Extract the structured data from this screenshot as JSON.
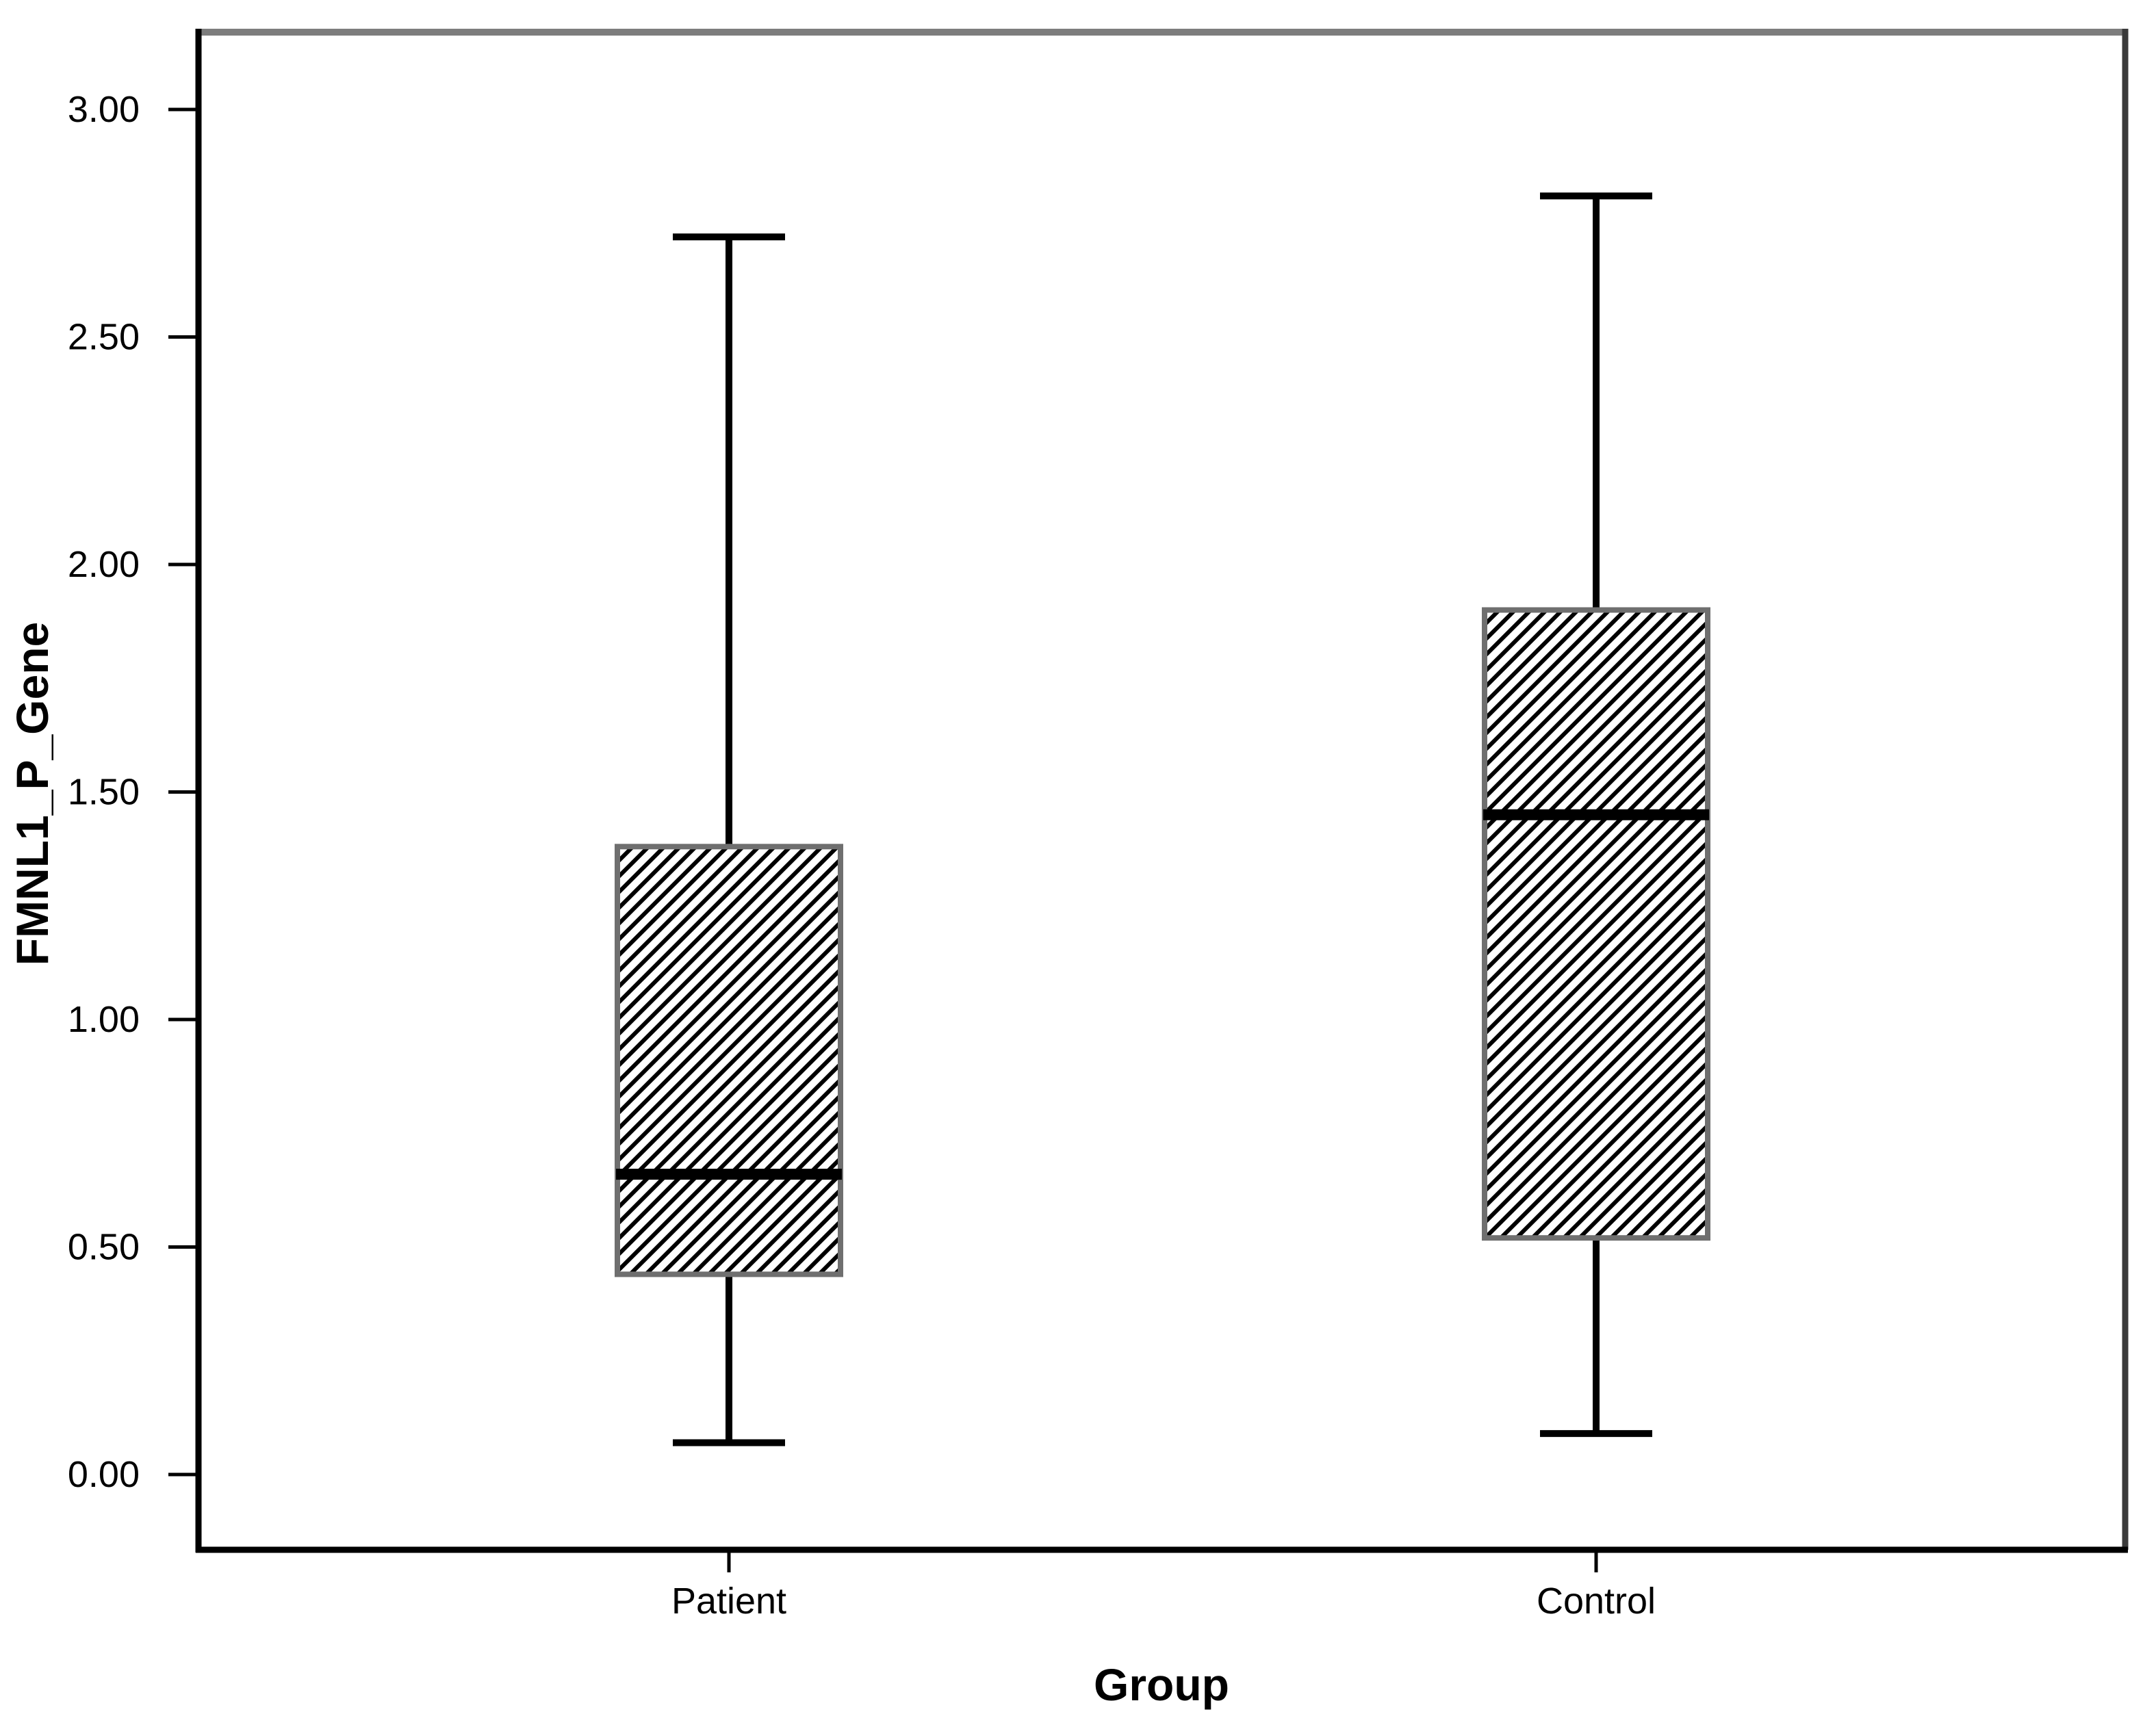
{
  "chart_data": {
    "type": "boxplot",
    "title": "",
    "xlabel": "Group",
    "ylabel": "FMNL1_P_Gene",
    "categories": [
      "Patient",
      "Control"
    ],
    "y_axis": {
      "ticks": [
        {
          "value": 0.0,
          "label": "0.00"
        },
        {
          "value": 0.5,
          "label": "0.50"
        },
        {
          "value": 1.0,
          "label": "1.00"
        },
        {
          "value": 1.5,
          "label": "1.50"
        },
        {
          "value": 2.0,
          "label": "2.00"
        },
        {
          "value": 2.5,
          "label": "2.50"
        },
        {
          "value": 3.0,
          "label": "3.00"
        }
      ],
      "ylim": [
        -0.17,
        3.17
      ],
      "grid": false
    },
    "legend": "none",
    "series": [
      {
        "name": "Patient",
        "min": 0.07,
        "q1": 0.44,
        "median": 0.66,
        "q3": 1.38,
        "max": 2.72
      },
      {
        "name": "Control",
        "min": 0.09,
        "q1": 0.52,
        "median": 1.45,
        "q3": 1.9,
        "max": 2.81
      }
    ],
    "style": {
      "box_fill": "hatched-diagonal",
      "hatch_color": "#000000",
      "box_border_color": "#6f6f6f",
      "whisker_color": "#000000",
      "median_color": "#000000",
      "frame_top_color": "#7d7d7d",
      "frame_right_color": "#3a3a3a",
      "axis_color": "#000000",
      "background": "#ffffff"
    }
  }
}
